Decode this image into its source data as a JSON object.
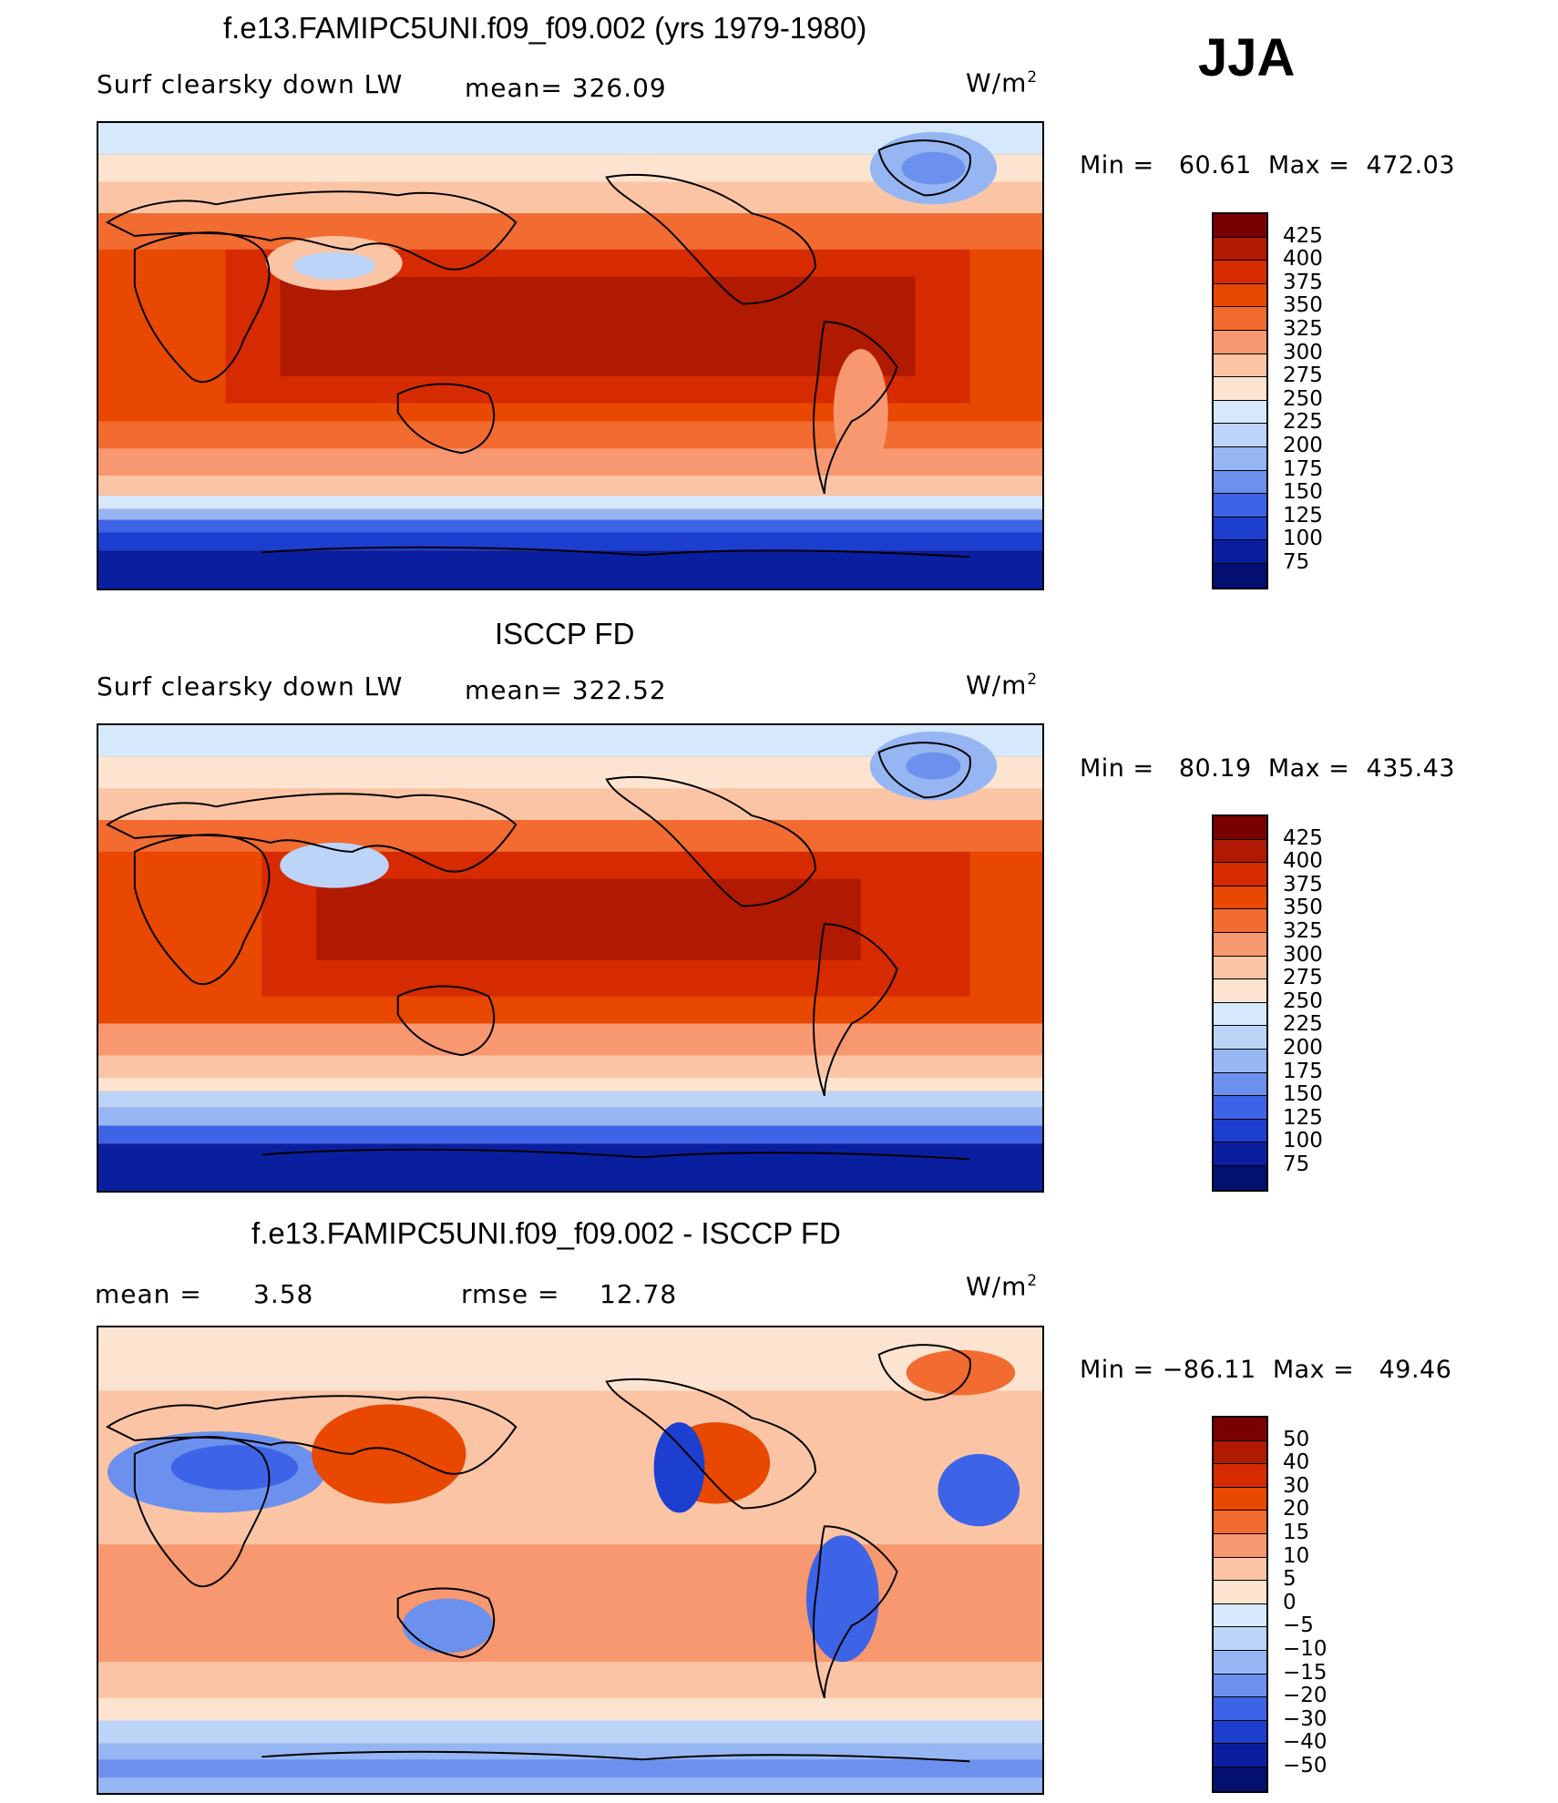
{
  "season": "JJA",
  "units_base": "W/m",
  "units_exp": "2",
  "panels": [
    {
      "title": "f.e13.FAMIPC5UNI.f09_f09.002 (yrs 1979-1980)",
      "left_label": "Surf clearsky down LW",
      "stat1": "mean= 326.09",
      "min_label": "Min =",
      "min": "60.61",
      "max_label": "Max =",
      "max": "472.03",
      "ticks": [
        "425",
        "400",
        "375",
        "350",
        "325",
        "300",
        "275",
        "250",
        "225",
        "200",
        "175",
        "150",
        "125",
        "100",
        "75"
      ],
      "colors": [
        "#7a0000",
        "#b01a00",
        "#d62b00",
        "#e84800",
        "#f26b30",
        "#f79870",
        "#fbc5a5",
        "#fde4d0",
        "#d6e8fb",
        "#bcd4f8",
        "#96b6f3",
        "#6b90ee",
        "#3d64e6",
        "#1c3fd0",
        "#0a1fa0",
        "#031070"
      ]
    },
    {
      "title": "ISCCP FD",
      "left_label": "Surf clearsky down LW",
      "stat1": "mean= 322.52",
      "min_label": "Min =",
      "min": "80.19",
      "max_label": "Max =",
      "max": "435.43",
      "ticks": [
        "425",
        "400",
        "375",
        "350",
        "325",
        "300",
        "275",
        "250",
        "225",
        "200",
        "175",
        "150",
        "125",
        "100",
        "75"
      ],
      "colors": [
        "#7a0000",
        "#b01a00",
        "#d62b00",
        "#e84800",
        "#f26b30",
        "#f79870",
        "#fbc5a5",
        "#fde4d0",
        "#d6e8fb",
        "#bcd4f8",
        "#96b6f3",
        "#6b90ee",
        "#3d64e6",
        "#1c3fd0",
        "#0a1fa0",
        "#031070"
      ]
    },
    {
      "title": "f.e13.FAMIPC5UNI.f09_f09.002 - ISCCP FD",
      "left_label": "mean =",
      "left_value": "3.58",
      "stat1": "rmse =",
      "stat1_value": "12.78",
      "min_label": "Min =",
      "min": "−86.11",
      "max_label": "Max =",
      "max": "49.46",
      "ticks": [
        "50",
        "40",
        "30",
        "20",
        "15",
        "10",
        "5",
        "0",
        "−5",
        "−10",
        "−15",
        "−20",
        "−30",
        "−40",
        "−50"
      ],
      "colors": [
        "#7a0000",
        "#b01a00",
        "#d62b00",
        "#e84800",
        "#f26b30",
        "#f79870",
        "#fbc5a5",
        "#fde4d0",
        "#d6e8fb",
        "#bcd4f8",
        "#96b6f3",
        "#6b90ee",
        "#3d64e6",
        "#1c3fd0",
        "#0a1fa0",
        "#031070"
      ]
    }
  ]
}
